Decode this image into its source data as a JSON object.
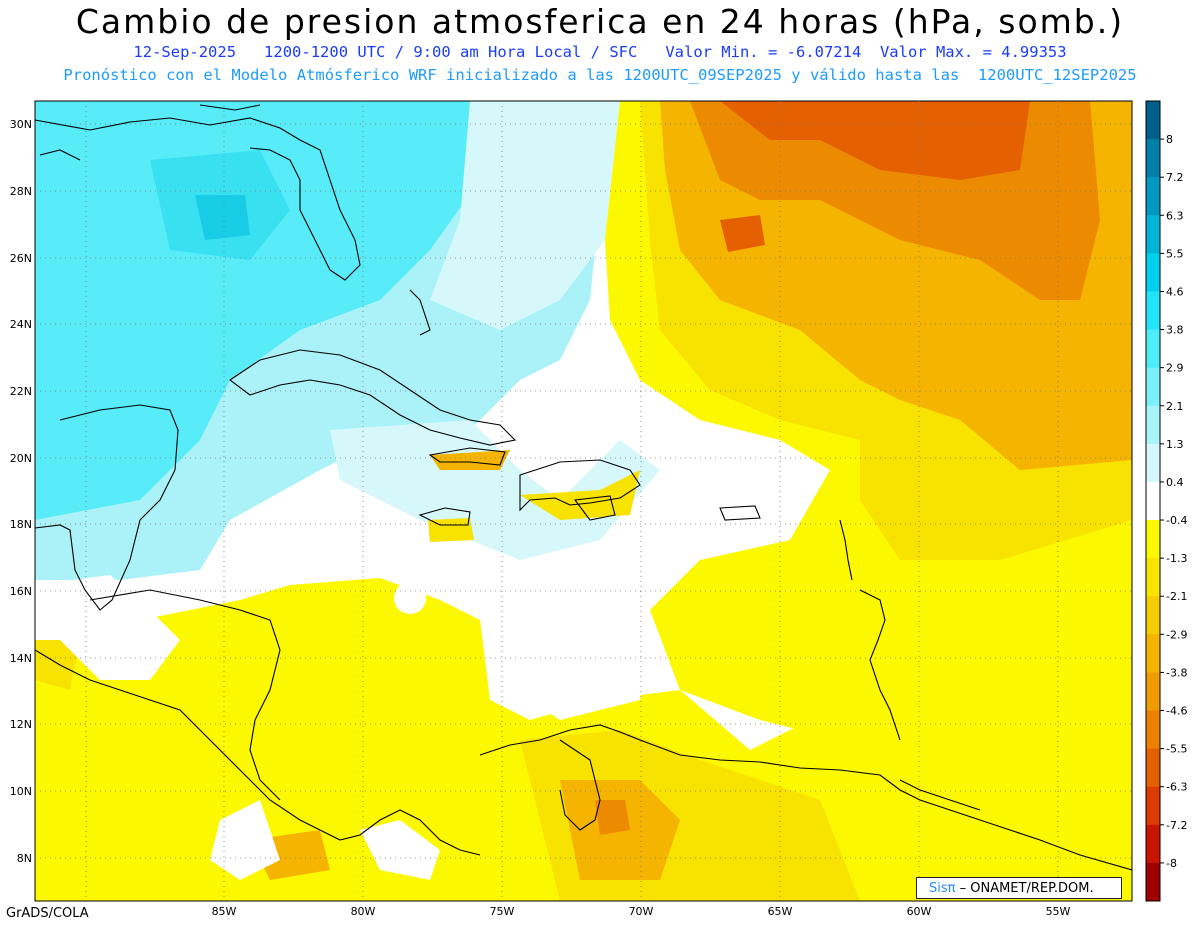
{
  "title": "Cambio de presion atmosferica en 24 horas (hPa, somb.)",
  "subtitle_line1": "12-Sep-2025   1200-1200 UTC / 9:00 am Hora Local / SFC   Valor Min. = -6.07214  Valor Max. = 4.99353",
  "subtitle_line2": "Pronóstico con el Modelo Atmósferico WRF inicializado a las 1200UTC_09SEP2025 y válido hasta las  1200UTC_12SEP2025",
  "footer": "GrADS/COLA",
  "credit_logo": "Sisπ",
  "credit_text": " – ONAMET/REP.DOM.",
  "lat_labels": [
    "30N",
    "28N",
    "26N",
    "24N",
    "22N",
    "20N",
    "18N",
    "16N",
    "14N",
    "12N",
    "10N",
    "8N"
  ],
  "lon_labels": [
    "85W",
    "80W",
    "75W",
    "70W",
    "65W",
    "60W",
    "55W"
  ],
  "colorbar": {
    "labels": [
      "8",
      "7.2",
      "6.3",
      "5.5",
      "4.6",
      "3.8",
      "2.9",
      "2.1",
      "1.3",
      "0.4",
      "-0.4",
      "-1.3",
      "-2.1",
      "-2.9",
      "-3.8",
      "-4.6",
      "-5.5",
      "-6.3",
      "-7.2",
      "-8"
    ],
    "colors": [
      "#00608c",
      "#0080a8",
      "#0098c0",
      "#00b4d8",
      "#00d0ee",
      "#22e4f8",
      "#4cecf8",
      "#7af0f8",
      "#a8f4f8",
      "#d4f8fa",
      "#ffffff",
      "#fcf800",
      "#f8e400",
      "#f4cc00",
      "#f4b400",
      "#f09c00",
      "#ec8000",
      "#e46000",
      "#dc3c00",
      "#c81400",
      "#a00000"
    ]
  },
  "colors": {
    "cyan": "#58ecf8",
    "light_cyan": "#aaf2f8",
    "pale_cyan": "#d6f8fa",
    "yellow": "#fcf800",
    "yellow2": "#f8e200",
    "orange": "#f4b400",
    "dark_orange": "#ec8a00",
    "red_orange": "#e46000"
  }
}
